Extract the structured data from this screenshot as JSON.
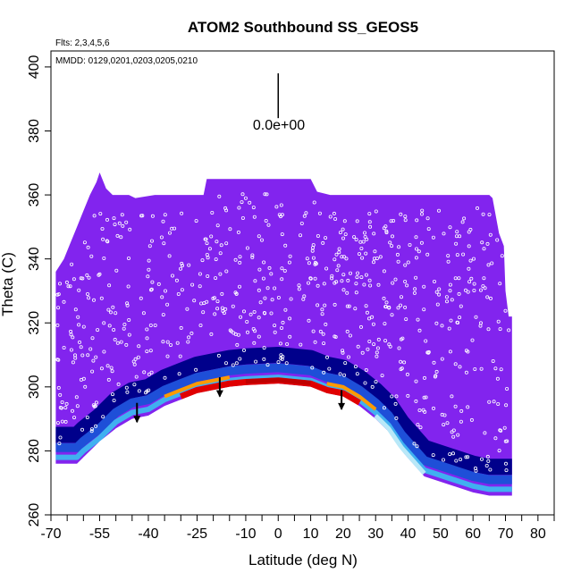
{
  "chart_data": {
    "type": "heatmap",
    "title": "ATOM2 Southbound SS_GEOS5",
    "subtitle_flights": "Flts: 2,3,4,5,6",
    "subtitle_dates": "MMDD: 0129,0201,0203,0205,0210",
    "xlabel": "Latitude (deg N)",
    "ylabel": "Theta (C)",
    "xlim": [
      -70,
      85
    ],
    "ylim": [
      260,
      405
    ],
    "x_ticks": [
      "-70",
      "-55",
      "-40",
      "-25",
      "-10",
      "0",
      "10",
      "20",
      "30",
      "40",
      "50",
      "60",
      "70",
      "80"
    ],
    "x_tick_values": [
      -70,
      -55,
      -40,
      -25,
      -10,
      0,
      10,
      20,
      30,
      40,
      50,
      60,
      70,
      80
    ],
    "x_minor_ticks": [
      -65,
      -60,
      -50,
      -45,
      -35,
      -30,
      -20,
      -15,
      -5,
      5,
      15,
      25,
      35,
      45,
      55,
      65,
      75,
      85
    ],
    "y_ticks": [
      "260",
      "280",
      "300",
      "320",
      "340",
      "360",
      "380",
      "400"
    ],
    "y_tick_values": [
      260,
      280,
      300,
      320,
      340,
      360,
      380,
      400
    ],
    "scale_label": "0.0e+00",
    "scale_bar": {
      "x": 0,
      "y_top": 398,
      "y_bottom": 384
    },
    "colors": {
      "background_field": "#8224EE",
      "deep_blue": "#00008B",
      "blue": "#1E4FD8",
      "light_blue": "#40B0F0",
      "pale_cyan": "#B8E8F8",
      "orange": "#FF9A00",
      "red": "#E00000",
      "dark_red": "#C00000",
      "sample_marker": "#FFFFFF"
    },
    "field_upper_boundary": [
      [
        -68.5,
        336
      ],
      [
        -66,
        340
      ],
      [
        -64,
        345
      ],
      [
        -62,
        350
      ],
      [
        -60,
        355
      ],
      [
        -58,
        360
      ],
      [
        -56,
        364
      ],
      [
        -55,
        367
      ],
      [
        -53,
        362
      ],
      [
        -51,
        360
      ],
      [
        -46,
        360
      ],
      [
        -44,
        359
      ],
      [
        -38,
        360
      ],
      [
        -30,
        360
      ],
      [
        -23,
        360
      ],
      [
        -22,
        365
      ],
      [
        10,
        365
      ],
      [
        12,
        361
      ],
      [
        16,
        360
      ],
      [
        30,
        360
      ],
      [
        50,
        360
      ],
      [
        65,
        360
      ],
      [
        66,
        359
      ],
      [
        68,
        348
      ],
      [
        69.5,
        344
      ],
      [
        70,
        330
      ],
      [
        71,
        322
      ],
      [
        72,
        322
      ],
      [
        72,
        270
      ]
    ],
    "field_lower_boundary": [
      [
        72,
        266
      ],
      [
        65,
        266
      ],
      [
        60,
        267
      ],
      [
        45,
        272
      ],
      [
        38,
        280
      ],
      [
        34,
        286
      ],
      [
        30,
        290
      ],
      [
        25,
        294
      ],
      [
        20,
        297
      ],
      [
        15,
        298
      ],
      [
        10,
        300
      ],
      [
        0,
        301
      ],
      [
        -10,
        300.5
      ],
      [
        -15,
        300
      ],
      [
        -20,
        299
      ],
      [
        -25,
        298
      ],
      [
        -30,
        296
      ],
      [
        -35,
        294
      ],
      [
        -40,
        291
      ],
      [
        -45,
        290
      ],
      [
        -50,
        287
      ],
      [
        -55,
        282
      ],
      [
        -60,
        278
      ],
      [
        -62,
        276
      ],
      [
        -67,
        276
      ],
      [
        -68.5,
        276
      ]
    ],
    "arrows": [
      {
        "x": -43.5,
        "y_top": 295,
        "y_bottom": 289
      },
      {
        "x": -18,
        "y_top": 303,
        "y_bottom": 297
      },
      {
        "x": 19.5,
        "y_top": 299,
        "y_bottom": 293
      }
    ],
    "white_gap": {
      "points": [
        [
          -60,
          278
        ],
        [
          -55,
          283
        ],
        [
          -50,
          287
        ],
        [
          -45,
          290
        ],
        [
          -40,
          291
        ],
        [
          -35,
          294
        ],
        [
          -30,
          296
        ],
        [
          -25,
          298
        ],
        [
          -20,
          299
        ],
        [
          -15,
          300
        ],
        [
          -10,
          300.5
        ],
        [
          0,
          301
        ],
        [
          10,
          300
        ],
        [
          15,
          298
        ],
        [
          20,
          297
        ],
        [
          25,
          294
        ],
        [
          30,
          290
        ],
        [
          34,
          285
        ],
        [
          38,
          280
        ],
        [
          42,
          275
        ],
        [
          45,
          271
        ],
        [
          40,
          272
        ],
        [
          35,
          275
        ],
        [
          28,
          280
        ],
        [
          20,
          283
        ],
        [
          10,
          285
        ],
        [
          0,
          286
        ],
        [
          -10,
          286
        ],
        [
          -20,
          285
        ],
        [
          -30,
          284
        ],
        [
          -40,
          282
        ],
        [
          -50,
          280
        ],
        [
          -55,
          278
        ],
        [
          -60,
          277
        ]
      ]
    }
  }
}
